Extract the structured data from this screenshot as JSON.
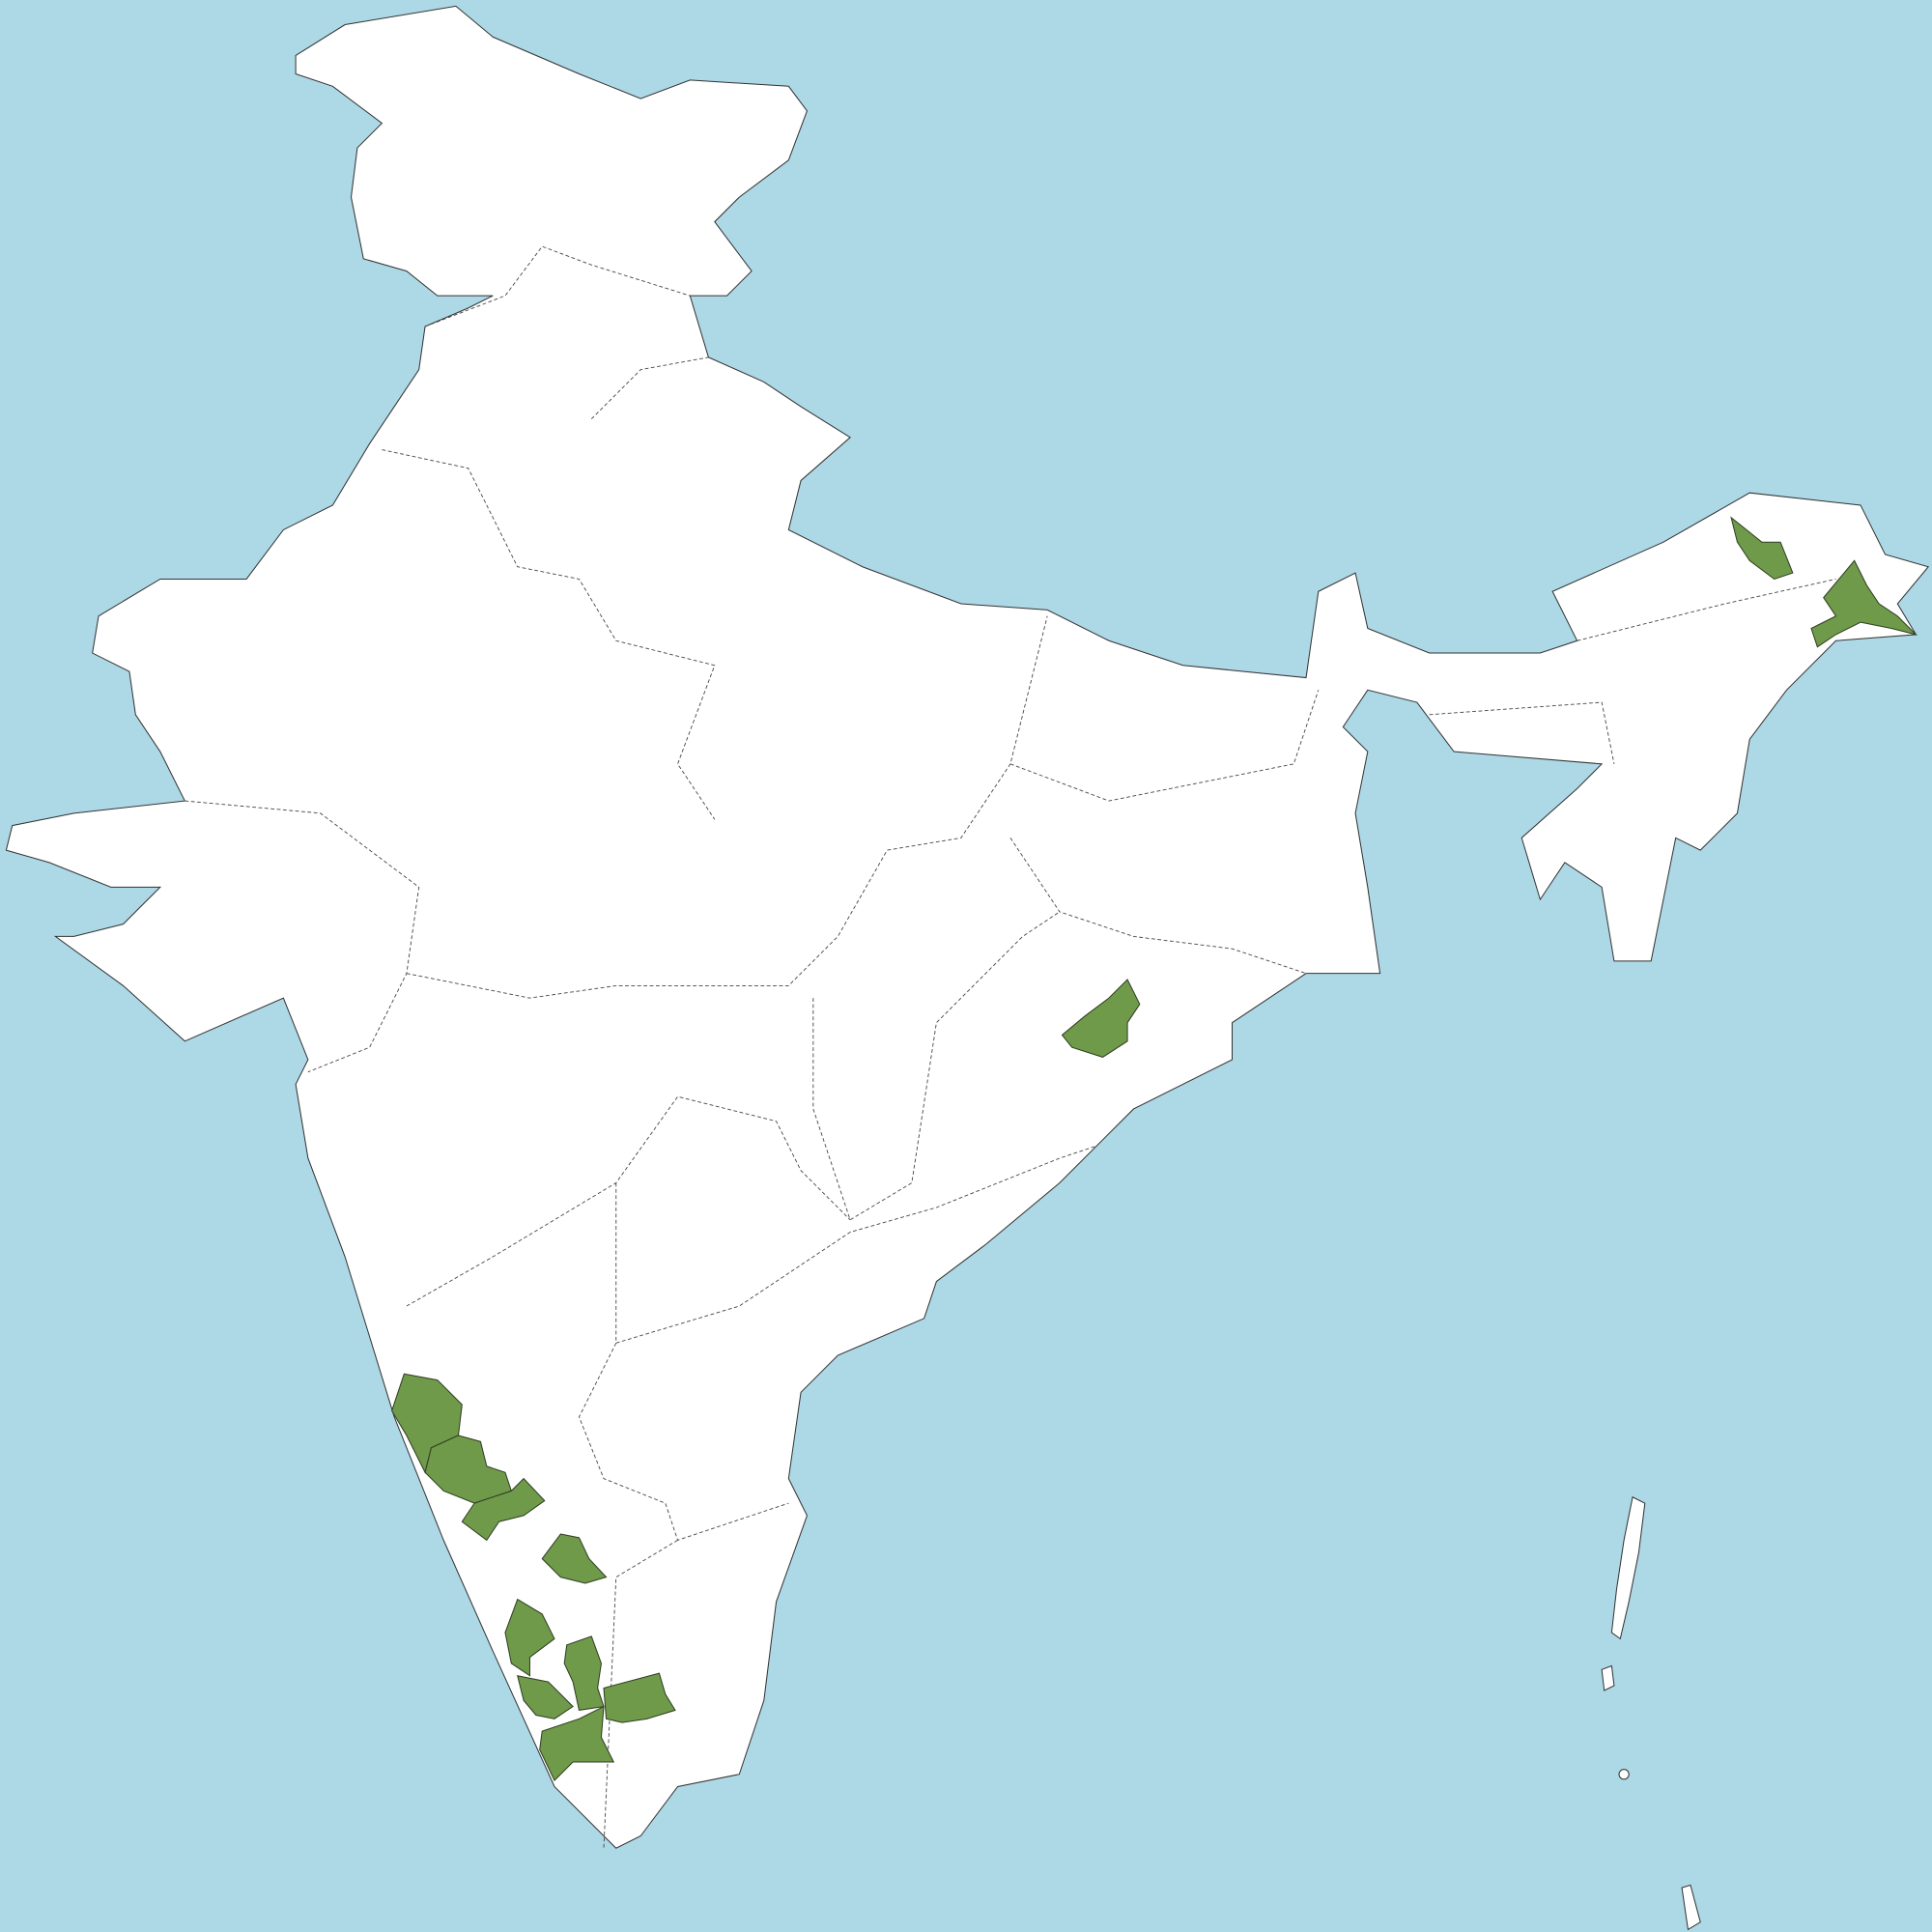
{
  "map": {
    "colors": {
      "sea": "#add8e6",
      "land": "#ffffff",
      "highlight": "#6f9a4a",
      "border": "#333333"
    },
    "highlighted_region_count": 12
  }
}
